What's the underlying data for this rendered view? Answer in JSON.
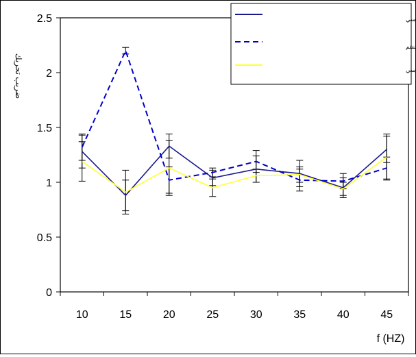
{
  "chart_data": {
    "type": "line",
    "title": "",
    "xlabel": "f (HZ)",
    "ylabel": "ضريب تحريك",
    "categories": [
      "10",
      "15",
      "20",
      "25",
      "30",
      "35",
      "40",
      "45"
    ],
    "x": [
      10,
      15,
      20,
      25,
      30,
      35,
      40,
      45
    ],
    "ylim": [
      0,
      2.5
    ],
    "yticks": [
      "0",
      "0.5",
      "1",
      "1.5",
      "2",
      "2.5"
    ],
    "grid": false,
    "legend": "top-right",
    "series": [
      {
        "name": "ضريب تحريک پذيري زبان تا حي ر يا مي با نهاي مغناطيسي پاليسي",
        "style": "solid",
        "color": "#1a1a8c",
        "values": [
          1.28,
          0.88,
          1.33,
          1.04,
          1.12,
          1.08,
          0.95,
          1.3
        ],
        "errors": [
          0.15,
          0.14,
          0.11,
          0.07,
          0.12,
          0.12,
          0.09,
          0.12
        ]
      },
      {
        "name": "ضريب تحريک پذيري زبان تا حي ر يا مي با نهاي مغناطيسي تركيبي پاليسي و سينتتم",
        "style": "dashed",
        "color": "#0000cc",
        "values": [
          1.32,
          2.2,
          1.02,
          1.09,
          1.19,
          1.02,
          1.01,
          1.13
        ],
        "errors": [
          0.12,
          0.03,
          0.12,
          0.04,
          0.1,
          0.1,
          0.07,
          0.1
        ]
      },
      {
        "name": "ضريب تحريک پذيري زبان تا حي ر يا مي با نهاي مغناطيسي سي نوسي",
        "style": "solid",
        "color": "#ffff33",
        "values": [
          1.19,
          0.91,
          1.13,
          0.95,
          1.06,
          1.07,
          0.94,
          1.23
        ],
        "errors": [
          0.18,
          0.2,
          0.25,
          0.08,
          0.06,
          0.07,
          0.06,
          0.21
        ]
      }
    ]
  }
}
